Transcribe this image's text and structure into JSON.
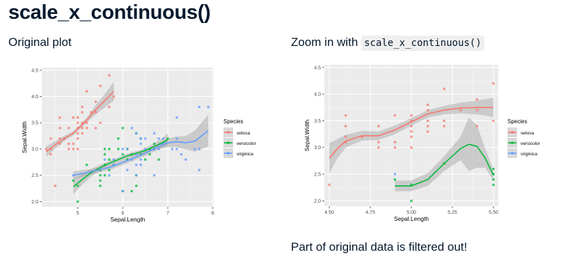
{
  "slide": {
    "title": "scale_x_continuous()",
    "left_caption": "Original plot",
    "right_caption_prefix": "Zoom in with ",
    "right_caption_code": "scale_x_continuous()",
    "note": "Part of original data is filtered out!"
  },
  "colors": {
    "setosa": "#f8766d",
    "versicolor": "#00ba38",
    "virginica": "#619cff",
    "panel": "#ebebeb"
  },
  "chart_data": [
    {
      "type": "scatter",
      "xlabel": "Sepal.Length",
      "ylabel": "Sepal.Width",
      "xlim": [
        4.2,
        8.02
      ],
      "ylim": [
        1.9,
        4.55
      ],
      "xticks": [
        5,
        6,
        7,
        8
      ],
      "yticks": [
        2.0,
        2.5,
        3.0,
        3.5,
        4.0,
        4.5
      ],
      "grid": true,
      "legend": {
        "title": "Species",
        "position": "right",
        "entries": [
          "setosa",
          "versicolor",
          "virginica"
        ]
      },
      "series": [
        {
          "name": "setosa",
          "points": [
            [
              4.3,
              3.0
            ],
            [
              4.4,
              2.9
            ],
            [
              4.4,
              3.0
            ],
            [
              4.4,
              3.2
            ],
            [
              4.5,
              2.3
            ],
            [
              4.6,
              3.1
            ],
            [
              4.6,
              3.2
            ],
            [
              4.6,
              3.4
            ],
            [
              4.6,
              3.6
            ],
            [
              4.7,
              3.2
            ],
            [
              4.8,
              3.0
            ],
            [
              4.8,
              3.1
            ],
            [
              4.8,
              3.4
            ],
            [
              4.9,
              3.0
            ],
            [
              4.9,
              3.1
            ],
            [
              4.9,
              3.6
            ],
            [
              5.0,
              3.0
            ],
            [
              5.0,
              3.2
            ],
            [
              5.0,
              3.3
            ],
            [
              5.0,
              3.4
            ],
            [
              5.0,
              3.5
            ],
            [
              5.0,
              3.6
            ],
            [
              5.1,
              3.3
            ],
            [
              5.1,
              3.4
            ],
            [
              5.1,
              3.5
            ],
            [
              5.1,
              3.7
            ],
            [
              5.1,
              3.8
            ],
            [
              5.2,
              3.4
            ],
            [
              5.2,
              3.5
            ],
            [
              5.2,
              4.1
            ],
            [
              5.3,
              3.7
            ],
            [
              5.4,
              3.4
            ],
            [
              5.4,
              3.7
            ],
            [
              5.4,
              3.9
            ],
            [
              5.5,
              3.5
            ],
            [
              5.5,
              4.2
            ],
            [
              5.7,
              3.8
            ],
            [
              5.7,
              4.4
            ],
            [
              5.8,
              4.0
            ]
          ],
          "trend": [
            [
              4.3,
              2.95
            ],
            [
              4.5,
              3.08
            ],
            [
              4.7,
              3.2
            ],
            [
              4.9,
              3.3
            ],
            [
              5.0,
              3.38
            ],
            [
              5.2,
              3.55
            ],
            [
              5.4,
              3.75
            ],
            [
              5.6,
              3.92
            ],
            [
              5.8,
              4.1
            ]
          ],
          "band_halfwidth": [
            0.1,
            0.07,
            0.05,
            0.04,
            0.04,
            0.05,
            0.09,
            0.13,
            0.18
          ]
        },
        {
          "name": "versicolor",
          "points": [
            [
              4.9,
              2.4
            ],
            [
              5.0,
              2.0
            ],
            [
              5.0,
              2.3
            ],
            [
              5.2,
              2.7
            ],
            [
              5.5,
              2.3
            ],
            [
              5.5,
              2.4
            ],
            [
              5.5,
              2.5
            ],
            [
              5.5,
              2.6
            ],
            [
              5.6,
              2.5
            ],
            [
              5.6,
              2.7
            ],
            [
              5.6,
              2.9
            ],
            [
              5.6,
              3.0
            ],
            [
              5.7,
              2.6
            ],
            [
              5.7,
              2.8
            ],
            [
              5.7,
              3.0
            ],
            [
              5.8,
              2.7
            ],
            [
              5.9,
              3.0
            ],
            [
              5.9,
              3.2
            ],
            [
              6.0,
              2.2
            ],
            [
              6.0,
              2.9
            ],
            [
              6.0,
              3.4
            ],
            [
              6.1,
              2.8
            ],
            [
              6.1,
              3.0
            ],
            [
              6.2,
              2.2
            ],
            [
              6.2,
              2.9
            ],
            [
              6.3,
              2.3
            ],
            [
              6.3,
              2.5
            ],
            [
              6.3,
              3.3
            ],
            [
              6.4,
              2.9
            ],
            [
              6.4,
              3.2
            ],
            [
              6.5,
              2.8
            ],
            [
              6.6,
              2.9
            ],
            [
              6.6,
              3.0
            ],
            [
              6.7,
              3.0
            ],
            [
              6.7,
              3.1
            ],
            [
              6.8,
              2.8
            ],
            [
              6.9,
              3.1
            ],
            [
              7.0,
              3.2
            ]
          ],
          "trend": [
            [
              4.9,
              2.28
            ],
            [
              5.1,
              2.42
            ],
            [
              5.3,
              2.55
            ],
            [
              5.5,
              2.65
            ],
            [
              5.7,
              2.73
            ],
            [
              5.9,
              2.8
            ],
            [
              6.1,
              2.87
            ],
            [
              6.3,
              2.92
            ],
            [
              6.5,
              2.97
            ],
            [
              6.7,
              3.05
            ],
            [
              6.9,
              3.13
            ],
            [
              7.0,
              3.18
            ]
          ],
          "band_halfwidth": [
            0.14,
            0.1,
            0.07,
            0.05,
            0.04,
            0.04,
            0.04,
            0.04,
            0.05,
            0.06,
            0.09,
            0.12
          ]
        },
        {
          "name": "virginica",
          "points": [
            [
              4.9,
              2.5
            ],
            [
              5.6,
              2.8
            ],
            [
              5.7,
              2.5
            ],
            [
              5.8,
              2.7
            ],
            [
              5.8,
              2.8
            ],
            [
              6.0,
              2.2
            ],
            [
              6.0,
              3.0
            ],
            [
              6.1,
              2.6
            ],
            [
              6.1,
              3.0
            ],
            [
              6.2,
              2.8
            ],
            [
              6.2,
              3.4
            ],
            [
              6.3,
              2.5
            ],
            [
              6.3,
              2.7
            ],
            [
              6.3,
              2.9
            ],
            [
              6.3,
              3.3
            ],
            [
              6.4,
              2.7
            ],
            [
              6.4,
              2.8
            ],
            [
              6.4,
              3.1
            ],
            [
              6.4,
              3.2
            ],
            [
              6.5,
              3.0
            ],
            [
              6.5,
              3.2
            ],
            [
              6.7,
              2.5
            ],
            [
              6.7,
              3.0
            ],
            [
              6.7,
              3.3
            ],
            [
              6.8,
              3.0
            ],
            [
              6.8,
              3.2
            ],
            [
              6.9,
              3.1
            ],
            [
              6.9,
              3.2
            ],
            [
              7.1,
              3.0
            ],
            [
              7.2,
              3.0
            ],
            [
              7.2,
              3.2
            ],
            [
              7.2,
              3.6
            ],
            [
              7.3,
              2.9
            ],
            [
              7.4,
              2.8
            ],
            [
              7.6,
              3.0
            ],
            [
              7.7,
              2.6
            ],
            [
              7.7,
              3.0
            ],
            [
              7.7,
              3.8
            ],
            [
              7.9,
              3.8
            ]
          ],
          "trend": [
            [
              4.9,
              2.5
            ],
            [
              5.3,
              2.57
            ],
            [
              5.7,
              2.65
            ],
            [
              6.1,
              2.78
            ],
            [
              6.5,
              2.92
            ],
            [
              6.8,
              3.05
            ],
            [
              7.0,
              3.12
            ],
            [
              7.2,
              3.14
            ],
            [
              7.4,
              3.12
            ],
            [
              7.6,
              3.15
            ],
            [
              7.9,
              3.35
            ]
          ],
          "band_halfwidth": [
            0.08,
            0.05,
            0.05,
            0.05,
            0.05,
            0.06,
            0.08,
            0.1,
            0.13,
            0.2,
            0.3
          ]
        }
      ]
    },
    {
      "type": "scatter",
      "xlabel": "Sepal.Length",
      "ylabel": "Sepal.Width",
      "xlim": [
        4.47,
        5.53
      ],
      "ylim": [
        1.9,
        4.55
      ],
      "xticks": [
        4.5,
        4.75,
        5.0,
        5.25,
        5.5
      ],
      "xtick_labels": [
        "4.50",
        "4.75",
        "5.00",
        "5.25",
        "5.50"
      ],
      "yticks": [
        2.0,
        2.5,
        3.0,
        3.5,
        4.0,
        4.5
      ],
      "grid": true,
      "legend": {
        "title": "Species",
        "position": "right",
        "entries": [
          "setosa",
          "versicolor",
          "virginica"
        ]
      },
      "series": [
        {
          "name": "setosa",
          "points": [
            [
              4.5,
              2.3
            ],
            [
              4.6,
              3.1
            ],
            [
              4.6,
              3.2
            ],
            [
              4.6,
              3.4
            ],
            [
              4.6,
              3.6
            ],
            [
              4.7,
              3.2
            ],
            [
              4.8,
              3.0
            ],
            [
              4.8,
              3.1
            ],
            [
              4.8,
              3.4
            ],
            [
              4.9,
              3.0
            ],
            [
              4.9,
              3.1
            ],
            [
              4.9,
              3.6
            ],
            [
              5.0,
              3.0
            ],
            [
              5.0,
              3.2
            ],
            [
              5.0,
              3.3
            ],
            [
              5.0,
              3.4
            ],
            [
              5.0,
              3.5
            ],
            [
              5.0,
              3.6
            ],
            [
              5.1,
              3.3
            ],
            [
              5.1,
              3.4
            ],
            [
              5.1,
              3.5
            ],
            [
              5.1,
              3.7
            ],
            [
              5.1,
              3.8
            ],
            [
              5.2,
              3.4
            ],
            [
              5.2,
              3.5
            ],
            [
              5.2,
              4.1
            ],
            [
              5.3,
              3.7
            ],
            [
              5.4,
              3.4
            ],
            [
              5.4,
              3.7
            ],
            [
              5.4,
              3.9
            ],
            [
              5.5,
              3.5
            ],
            [
              5.5,
              4.2
            ]
          ],
          "trend": [
            [
              4.5,
              2.8
            ],
            [
              4.55,
              2.98
            ],
            [
              4.6,
              3.12
            ],
            [
              4.7,
              3.22
            ],
            [
              4.8,
              3.22
            ],
            [
              4.9,
              3.33
            ],
            [
              5.0,
              3.48
            ],
            [
              5.1,
              3.63
            ],
            [
              5.2,
              3.7
            ],
            [
              5.3,
              3.74
            ],
            [
              5.4,
              3.75
            ],
            [
              5.5,
              3.75
            ]
          ],
          "band_halfwidth": [
            0.28,
            0.18,
            0.12,
            0.09,
            0.08,
            0.08,
            0.07,
            0.07,
            0.08,
            0.1,
            0.13,
            0.18
          ]
        },
        {
          "name": "versicolor",
          "points": [
            [
              4.9,
              2.4
            ],
            [
              5.0,
              2.0
            ],
            [
              5.0,
              2.3
            ],
            [
              5.2,
              2.7
            ],
            [
              5.5,
              2.3
            ],
            [
              5.5,
              2.4
            ],
            [
              5.5,
              2.5
            ],
            [
              5.5,
              2.6
            ]
          ],
          "trend": [
            [
              4.9,
              2.28
            ],
            [
              5.0,
              2.28
            ],
            [
              5.1,
              2.4
            ],
            [
              5.2,
              2.7
            ],
            [
              5.3,
              2.98
            ],
            [
              5.35,
              3.06
            ],
            [
              5.4,
              3.02
            ],
            [
              5.45,
              2.8
            ],
            [
              5.5,
              2.48
            ]
          ],
          "band_halfwidth": [
            0.1,
            0.1,
            0.12,
            0.14,
            0.22,
            0.5,
            0.4,
            0.18,
            0.1
          ]
        },
        {
          "name": "virginica",
          "points": [
            [
              4.9,
              2.5
            ]
          ],
          "trend": [],
          "band_halfwidth": []
        }
      ]
    }
  ]
}
